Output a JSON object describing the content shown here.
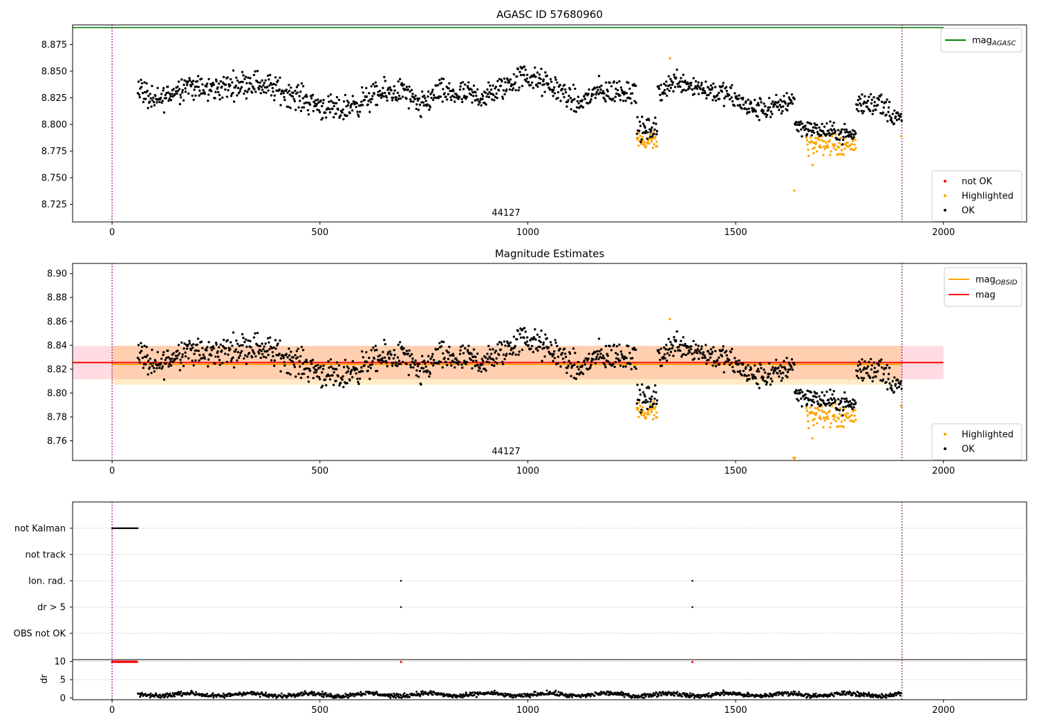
{
  "chart_data": [
    {
      "type": "scatter",
      "title": "AGASC ID 57680960",
      "obsid_label": "44127",
      "xlim": [
        -95,
        2200
      ],
      "ylim": [
        8.7085,
        8.8935
      ],
      "x_ticks": [
        0,
        500,
        1000,
        1500,
        2000
      ],
      "y_ticks": [
        8.725,
        8.75,
        8.775,
        8.8,
        8.825,
        8.85,
        8.875
      ],
      "y_tick_labels": [
        "8.725",
        "8.750",
        "8.775",
        "8.800",
        "8.825",
        "8.850",
        "8.875"
      ],
      "vlines": [
        0,
        1900
      ],
      "mag_agasc": 8.891,
      "series": [
        {
          "name": "not OK",
          "color": "#ff0000",
          "points": []
        },
        {
          "name": "Highlighted",
          "color": "#ffa500",
          "segments": [
            {
              "x0": 1262,
              "x1": 1312,
              "center": 8.784,
              "spread": 0.006
            },
            {
              "x0": 1670,
              "x1": 1790,
              "center": 8.781,
              "spread": 0.007
            }
          ],
          "extra_points": [
            [
              1641,
              8.738
            ],
            [
              1685,
              8.762
            ],
            [
              1898,
              8.789
            ],
            [
              1342,
              8.862
            ]
          ]
        },
        {
          "name": "OK",
          "color": "#000000",
          "segments": [
            {
              "x0": 62,
              "x1": 1262,
              "anchors": [
                [
                  62,
                  8.837
                ],
                [
                  100,
                  8.82
                ],
                [
                  180,
                  8.838
                ],
                [
                  220,
                  8.832
                ],
                [
                  340,
                  8.84
                ],
                [
                  420,
                  8.83
                ],
                [
                  540,
                  8.812
                ],
                [
                  640,
                  8.828
                ],
                [
                  700,
                  8.832
                ],
                [
                  740,
                  8.815
                ],
                [
                  780,
                  8.83
                ],
                [
                  900,
                  8.826
                ],
                [
                  990,
                  8.846
                ],
                [
                  1080,
                  8.832
                ],
                [
                  1120,
                  8.818
                ],
                [
                  1160,
                  8.83
                ],
                [
                  1260,
                  8.832
                ]
              ],
              "spread": 0.009
            },
            {
              "x0": 1262,
              "x1": 1312,
              "center": 8.795,
              "spread": 0.008
            },
            {
              "x0": 1312,
              "x1": 1642,
              "anchors": [
                [
                  1312,
                  8.83
                ],
                [
                  1360,
                  8.842
                ],
                [
                  1420,
                  8.834
                ],
                [
                  1480,
                  8.828
                ],
                [
                  1540,
                  8.814
                ],
                [
                  1600,
                  8.816
                ],
                [
                  1640,
                  8.826
                ]
              ],
              "spread": 0.008
            },
            {
              "x0": 1642,
              "x1": 1790,
              "anchors": [
                [
                  1642,
                  8.8
                ],
                [
                  1690,
                  8.795
                ],
                [
                  1790,
                  8.79
                ]
              ],
              "spread": 0.006
            },
            {
              "x0": 1790,
              "x1": 1900,
              "anchors": [
                [
                  1790,
                  8.818
                ],
                [
                  1840,
                  8.822
                ],
                [
                  1900,
                  8.802
                ]
              ],
              "spread": 0.009
            }
          ]
        }
      ],
      "legend_lines": [
        {
          "label": "mag",
          "subscript": "AGASC",
          "color": "#008000"
        }
      ],
      "legend_points": [
        {
          "label": "not OK",
          "color": "#ff0000"
        },
        {
          "label": "Highlighted",
          "color": "#ffa500"
        },
        {
          "label": "OK",
          "color": "#000000"
        }
      ]
    },
    {
      "type": "scatter",
      "title": "Magnitude Estimates",
      "obsid_label": "44127",
      "xlim": [
        -95,
        2200
      ],
      "ylim": [
        8.7435,
        8.9085
      ],
      "x_ticks": [
        0,
        500,
        1000,
        1500,
        2000
      ],
      "y_ticks": [
        8.76,
        8.78,
        8.8,
        8.82,
        8.84,
        8.86,
        8.88,
        8.9
      ],
      "y_tick_labels": [
        "8.76",
        "8.78",
        "8.80",
        "8.82",
        "8.84",
        "8.86",
        "8.88",
        "8.90"
      ],
      "vlines": [
        0,
        1900
      ],
      "mag": 8.8255,
      "mag_band": [
        8.8115,
        8.8395
      ],
      "mag_obsid": 8.824,
      "mag_obsid_band": [
        8.807,
        8.8395
      ],
      "legend_lines": [
        {
          "label": "mag",
          "subscript": "OBSID",
          "color": "#ffa500"
        },
        {
          "label": "mag",
          "subscript": "",
          "color": "#ff0000"
        }
      ],
      "legend_points": [
        {
          "label": "Highlighted",
          "color": "#ffa500"
        },
        {
          "label": "OK",
          "color": "#000000"
        }
      ],
      "note": "same samples as the AGASC panel"
    },
    {
      "type": "scatter",
      "title": "",
      "categories": [
        "not Kalman",
        "not track",
        "Ion. rad.",
        "dr > 5",
        "OBS not OK"
      ],
      "flags": {
        "not Kalman": {
          "x0": 0,
          "x1": 62
        },
        "not track": {},
        "Ion. rad.": {
          "points": [
            695,
            1396
          ]
        },
        "dr > 5": {
          "points": [
            695,
            1396
          ]
        },
        "OBS not OK": {}
      },
      "vlines": [
        0,
        1900
      ]
    },
    {
      "type": "scatter",
      "ylabel": "dr",
      "xlim": [
        -95,
        2200
      ],
      "ylim": [
        -0.5,
        10.5
      ],
      "y_ticks": [
        0,
        5,
        10
      ],
      "y_tick_labels": [
        "0",
        "5",
        "10"
      ],
      "x_ticks": [
        0,
        500,
        1000,
        1500,
        2000
      ],
      "dr_series": {
        "x0": 62,
        "x1": 1900,
        "center": 0.9,
        "spread": 0.9
      },
      "dr_capped": {
        "value": 10,
        "points_range": [
          0,
          62
        ],
        "points": [
          695,
          1396
        ],
        "color": "#ff0000"
      },
      "vlines": [
        0,
        1900
      ]
    }
  ]
}
